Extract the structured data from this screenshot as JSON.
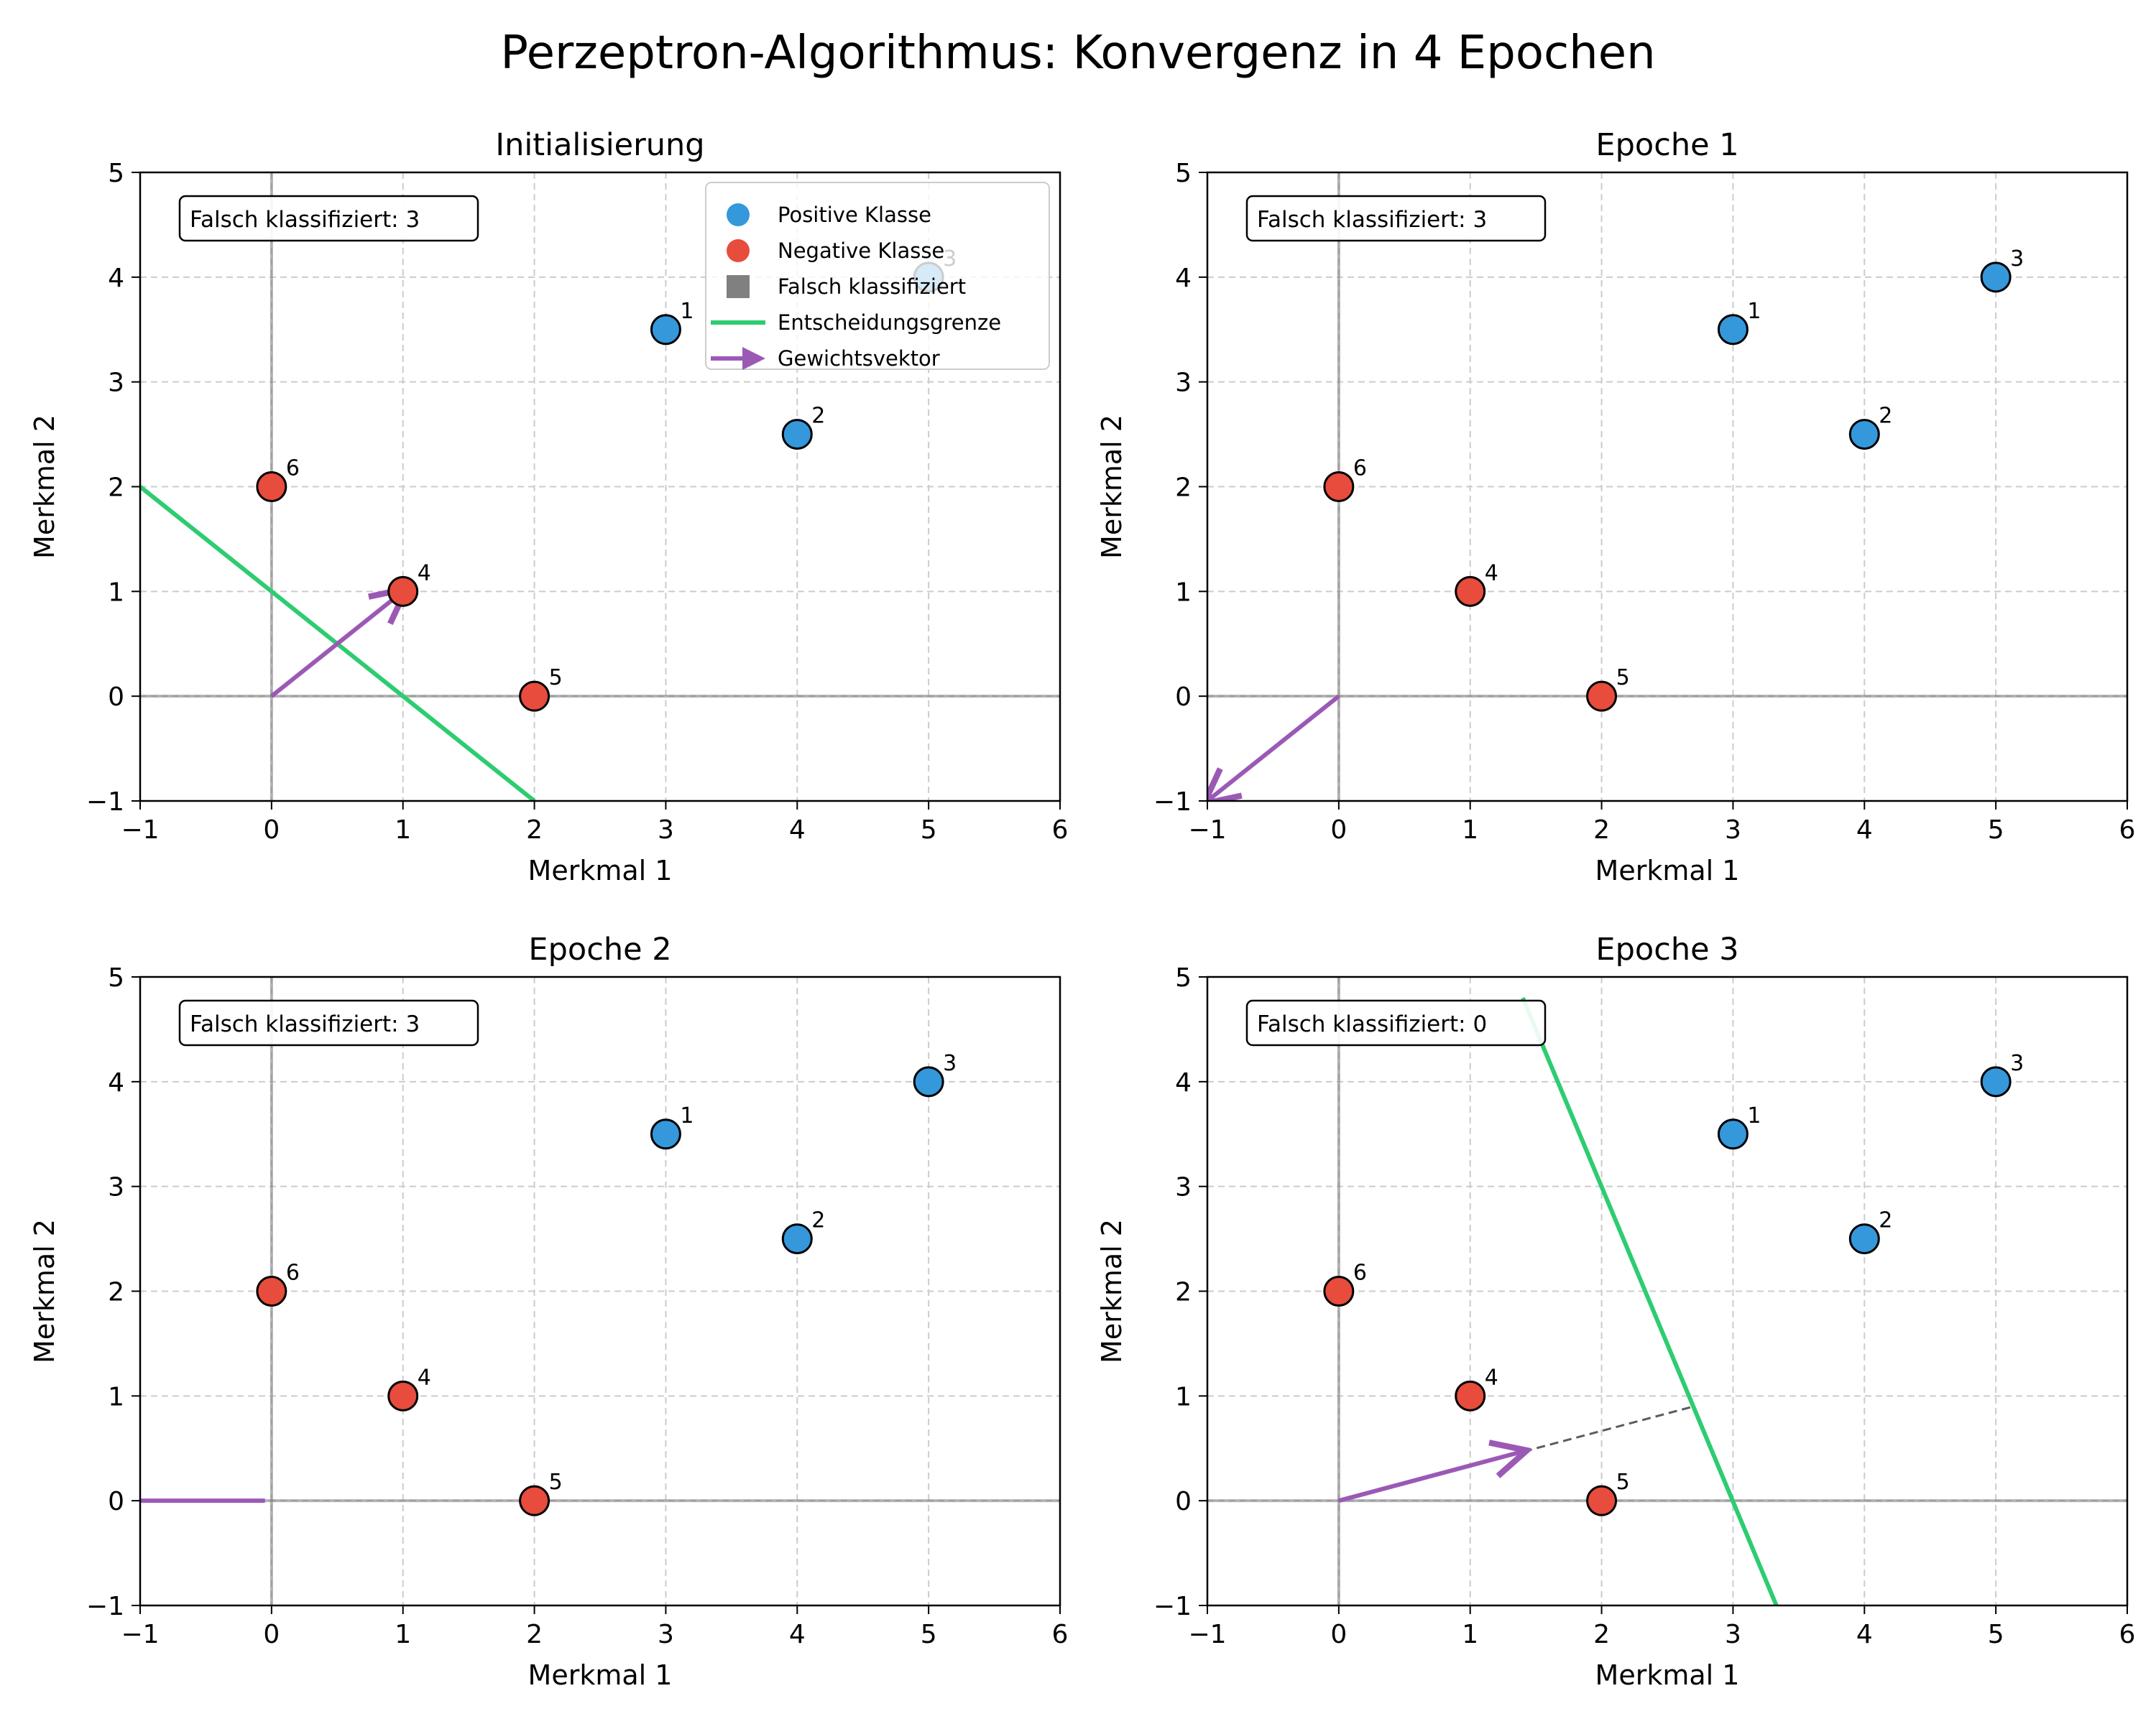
{
  "figure": {
    "title": "Perzeptron-Algorithmus: Konvergenz in 4 Epochen"
  },
  "colors": {
    "positive": "#3498db",
    "negative": "#e74c3c",
    "misclassified": "#808080",
    "boundary": "#2ecc71",
    "weight_vector": "#9b59b6",
    "axis_line": "#808080",
    "grid": "#cccccc"
  },
  "legend": {
    "positive_label": "Positive Klasse",
    "negative_label": "Negative Klasse",
    "misclassified_label": "Falsch klassifiziert",
    "boundary_label": "Entscheidungsgrenze",
    "weight_label": "Gewichtsvektor"
  },
  "chart_data": [
    {
      "type": "scatter",
      "title": "Initialisierung",
      "xlabel": "Merkmal 1",
      "ylabel": "Merkmal 2",
      "xlim": [
        -1,
        6
      ],
      "ylim": [
        -1,
        5
      ],
      "xticks": [
        "−1",
        "0",
        "1",
        "2",
        "3",
        "4",
        "5",
        "6"
      ],
      "yticks": [
        "−1",
        "0",
        "1",
        "2",
        "3",
        "4",
        "5"
      ],
      "grid": true,
      "legend_position": "upper right",
      "misclassified_text": "Falsch klassifiziert: 3",
      "points": [
        {
          "label": "1",
          "x": 3,
          "y": 3.5,
          "class": "positive"
        },
        {
          "label": "2",
          "x": 4,
          "y": 2.5,
          "class": "positive"
        },
        {
          "label": "3",
          "x": 5,
          "y": 4,
          "class": "positive"
        },
        {
          "label": "4",
          "x": 1,
          "y": 1,
          "class": "negative"
        },
        {
          "label": "5",
          "x": 2,
          "y": 0,
          "class": "negative"
        },
        {
          "label": "6",
          "x": 0,
          "y": 2,
          "class": "negative"
        }
      ],
      "boundary": [
        [
          -1,
          2
        ],
        [
          2,
          -1
        ]
      ],
      "weight_vector": [
        1,
        1
      ],
      "projection": [
        [
          0,
          0
        ],
        [
          1,
          1
        ]
      ]
    },
    {
      "type": "scatter",
      "title": "Epoche 1",
      "xlabel": "Merkmal 1",
      "ylabel": "Merkmal 2",
      "xlim": [
        -1,
        6
      ],
      "ylim": [
        -1,
        5
      ],
      "xticks": [
        "−1",
        "0",
        "1",
        "2",
        "3",
        "4",
        "5",
        "6"
      ],
      "yticks": [
        "−1",
        "0",
        "1",
        "2",
        "3",
        "4",
        "5"
      ],
      "grid": true,
      "misclassified_text": "Falsch klassifiziert: 3",
      "points": [
        {
          "label": "1",
          "x": 3,
          "y": 3.5,
          "class": "positive"
        },
        {
          "label": "2",
          "x": 4,
          "y": 2.5,
          "class": "positive"
        },
        {
          "label": "3",
          "x": 5,
          "y": 4,
          "class": "positive"
        },
        {
          "label": "4",
          "x": 1,
          "y": 1,
          "class": "negative"
        },
        {
          "label": "5",
          "x": 2,
          "y": 0,
          "class": "negative"
        },
        {
          "label": "6",
          "x": 0,
          "y": 2,
          "class": "negative"
        }
      ],
      "boundary": null,
      "weight_vector": [
        -1,
        -1
      ],
      "projection": null
    },
    {
      "type": "scatter",
      "title": "Epoche 2",
      "xlabel": "Merkmal 1",
      "ylabel": "Merkmal 2",
      "xlim": [
        -1,
        6
      ],
      "ylim": [
        -1,
        5
      ],
      "xticks": [
        "−1",
        "0",
        "1",
        "2",
        "3",
        "4",
        "5",
        "6"
      ],
      "yticks": [
        "−1",
        "0",
        "1",
        "2",
        "3",
        "4",
        "5"
      ],
      "grid": true,
      "misclassified_text": "Falsch klassifiziert: 3",
      "points": [
        {
          "label": "1",
          "x": 3,
          "y": 3.5,
          "class": "positive"
        },
        {
          "label": "2",
          "x": 4,
          "y": 2.5,
          "class": "positive"
        },
        {
          "label": "3",
          "x": 5,
          "y": 4,
          "class": "positive"
        },
        {
          "label": "4",
          "x": 1,
          "y": 1,
          "class": "negative"
        },
        {
          "label": "5",
          "x": 2,
          "y": 0,
          "class": "negative"
        },
        {
          "label": "6",
          "x": 0,
          "y": 2,
          "class": "negative"
        }
      ],
      "boundary": null,
      "weight_line": [
        [
          -1,
          0
        ],
        [
          -0.05,
          0
        ]
      ],
      "projection": null
    },
    {
      "type": "scatter",
      "title": "Epoche 3",
      "xlabel": "Merkmal 1",
      "ylabel": "Merkmal 2",
      "xlim": [
        -1,
        6
      ],
      "ylim": [
        -1,
        5
      ],
      "xticks": [
        "−1",
        "0",
        "1",
        "2",
        "3",
        "4",
        "5",
        "6"
      ],
      "yticks": [
        "−1",
        "0",
        "1",
        "2",
        "3",
        "4",
        "5"
      ],
      "grid": true,
      "misclassified_text": "Falsch klassifiziert: 0",
      "points": [
        {
          "label": "1",
          "x": 3,
          "y": 3.5,
          "class": "positive"
        },
        {
          "label": "2",
          "x": 4,
          "y": 2.5,
          "class": "positive"
        },
        {
          "label": "3",
          "x": 5,
          "y": 4,
          "class": "positive"
        },
        {
          "label": "4",
          "x": 1,
          "y": 1,
          "class": "negative"
        },
        {
          "label": "5",
          "x": 2,
          "y": 0,
          "class": "negative"
        },
        {
          "label": "6",
          "x": 0,
          "y": 2,
          "class": "negative"
        }
      ],
      "boundary": [
        [
          1.4,
          4.8
        ],
        [
          3.33,
          -1
        ]
      ],
      "weight_vector": [
        1.4,
        0.47
      ],
      "projection": [
        [
          0,
          0
        ],
        [
          2.7,
          0.9
        ]
      ]
    }
  ]
}
